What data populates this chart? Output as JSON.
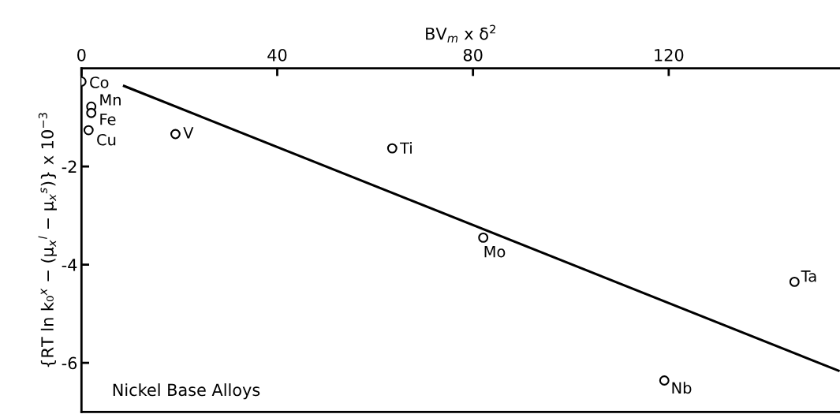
{
  "chart_data": {
    "type": "scatter",
    "xlabel": "BV$_{m}$ x δ$^{2}$",
    "ylabel": "{RT ln k₀$^{x}$ − (μ$_{x}$$^{l}$ − μ$_{x}$$^{s}$)} x 10$^{−3}$",
    "xlim": [
      0,
      155
    ],
    "xticks": [
      0,
      40,
      80,
      120
    ],
    "ylim": [
      -7,
      0
    ],
    "yticks": [
      -2,
      -4,
      -6
    ],
    "grid": false,
    "legend": false,
    "series": [
      {
        "marker": "circle",
        "color": "#000000",
        "x": [
          0,
          2.0,
          2.0,
          1.45,
          19.2,
          63.5,
          82.1,
          145.7,
          119.1
        ],
        "values": [
          -0.27,
          -0.78,
          -0.91,
          -1.26,
          -1.34,
          -1.63,
          -3.45,
          -4.35,
          -6.36
        ]
      },
      {
        "type": "line",
        "line_style": "solid",
        "color": "#000000",
        "x": [
          8.7,
          154.7
        ],
        "values": [
          -0.36,
          -6.16
        ]
      }
    ],
    "annotations": [
      {
        "text": "Co",
        "x": 0,
        "y": -0.27
      },
      {
        "text": "Mn",
        "x": 2.0,
        "y": -0.78
      },
      {
        "text": "Fe",
        "x": 2.0,
        "y": -0.91
      },
      {
        "text": "Cu",
        "x": 1.45,
        "y": -1.26
      },
      {
        "text": "V",
        "x": 19.2,
        "y": -1.34
      },
      {
        "text": "Ti",
        "x": 63.5,
        "y": -1.63
      },
      {
        "text": "Mo",
        "x": 82.1,
        "y": -3.45
      },
      {
        "text": "Ta",
        "x": 145.7,
        "y": -4.35
      },
      {
        "text": "Nb",
        "x": 119.1,
        "y": -6.36
      },
      "Nickel Base Alloys"
    ]
  }
}
